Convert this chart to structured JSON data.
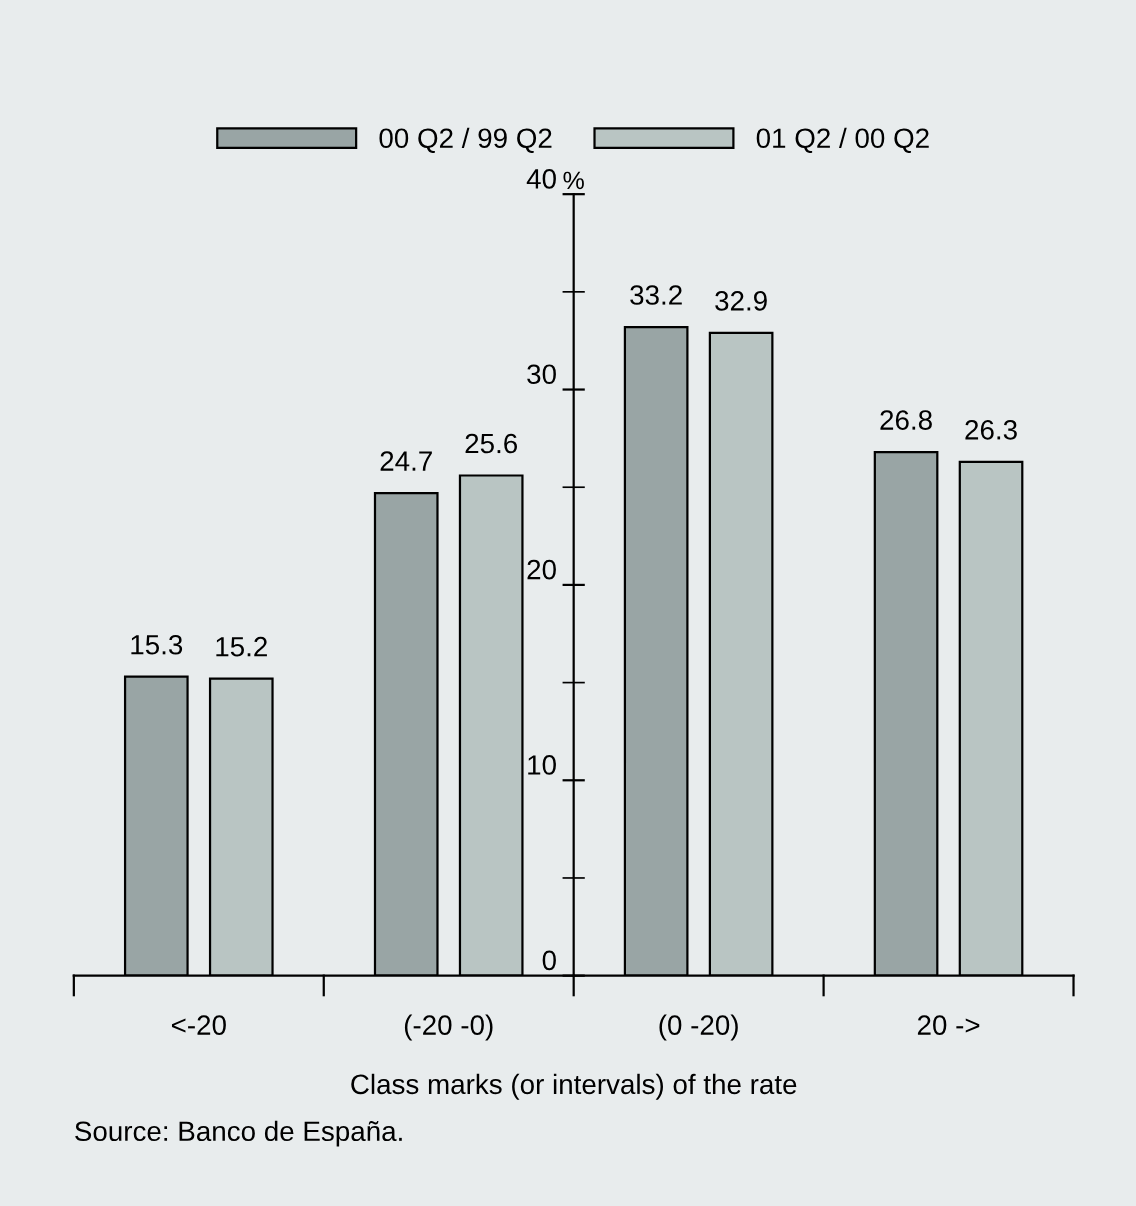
{
  "chart_data": {
    "type": "bar",
    "categories": [
      "<-20",
      "(-20 -0)",
      "(0 -20)",
      "20 ->"
    ],
    "series": [
      {
        "name": "00 Q2 / 99 Q2",
        "color": "#99a5a5",
        "values": [
          15.3,
          24.7,
          33.2,
          26.8
        ]
      },
      {
        "name": "01 Q2 / 00 Q2",
        "color": "#b9c5c3",
        "values": [
          15.2,
          25.6,
          32.9,
          26.3
        ]
      }
    ],
    "xlabel": "Class marks (or intervals) of the rate",
    "ylabel": "%",
    "ylim": [
      0,
      40
    ],
    "yticks": [
      0,
      10,
      20,
      30,
      40
    ],
    "data_labels": true,
    "legend": "top",
    "grid": false,
    "annotations": [
      "Source: Banco de España."
    ]
  }
}
